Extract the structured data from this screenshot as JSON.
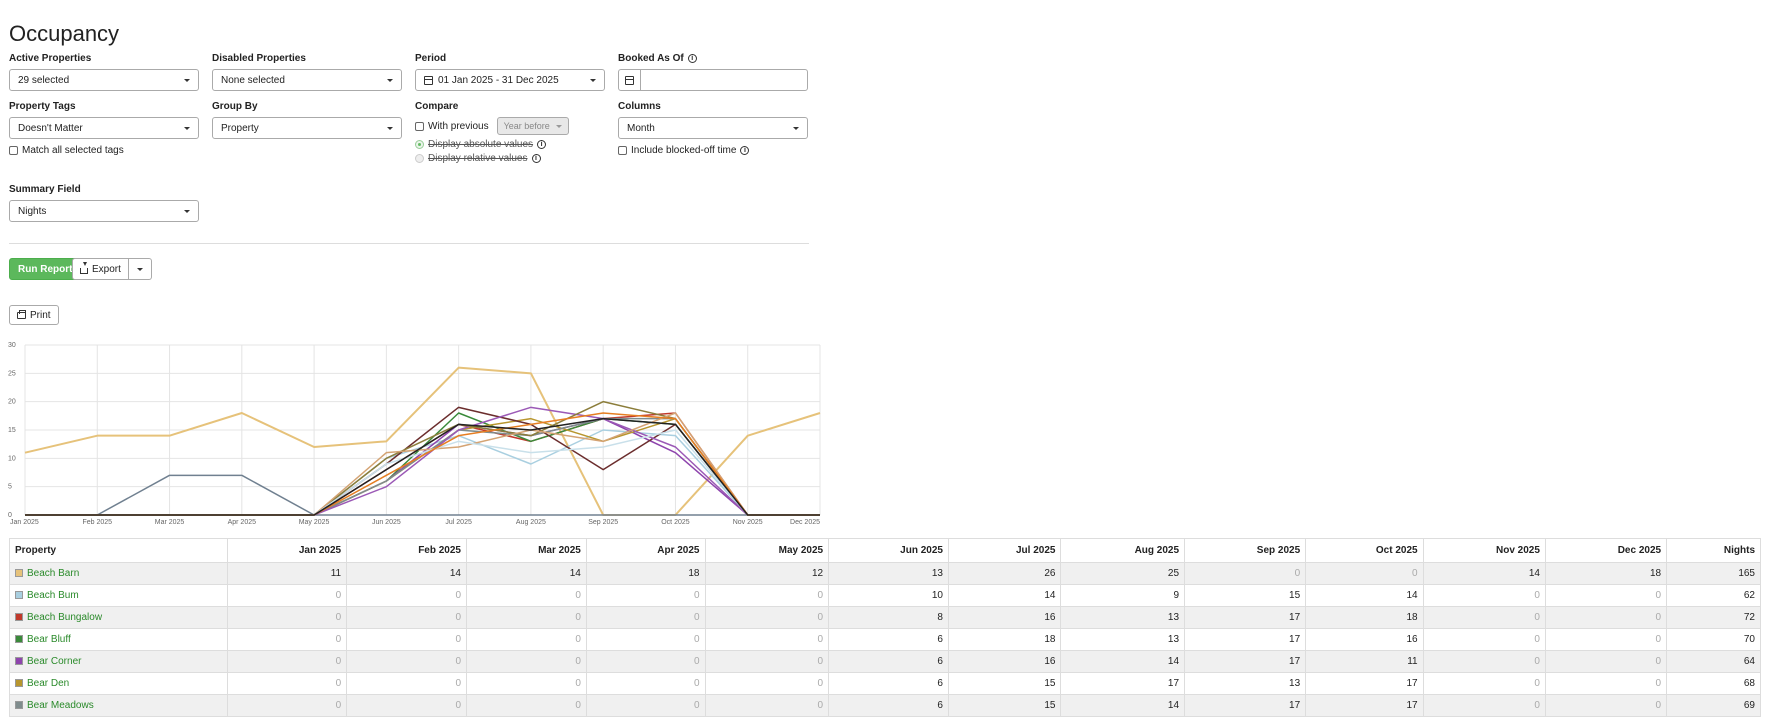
{
  "page": {
    "title": "Occupancy"
  },
  "filters": {
    "active_properties": {
      "label": "Active Properties",
      "value": "29 selected"
    },
    "disabled_properties": {
      "label": "Disabled Properties",
      "value": "None selected"
    },
    "period": {
      "label": "Period",
      "value": "01 Jan 2025 - 31 Dec 2025"
    },
    "booked_as_of": {
      "label": "Booked As Of",
      "value": ""
    },
    "property_tags": {
      "label": "Property Tags",
      "value": "Doesn't Matter",
      "match_all_label": "Match all selected tags"
    },
    "group_by": {
      "label": "Group By",
      "value": "Property"
    },
    "compare": {
      "label": "Compare",
      "with_previous_label": "With previous",
      "previous_select": "Year before",
      "absolute_label": "Display absolute values",
      "relative_label": "Display relative values"
    },
    "columns": {
      "label": "Columns",
      "value": "Month",
      "include_blocked_label": "Include blocked-off time"
    },
    "summary_field": {
      "label": "Summary Field",
      "value": "Nights"
    }
  },
  "actions": {
    "run_report": "Run Report",
    "export": "Export",
    "print": "Print"
  },
  "chart_data": {
    "type": "line",
    "categories": [
      "Jan 2025",
      "Feb 2025",
      "Mar 2025",
      "Apr 2025",
      "May 2025",
      "Jun 2025",
      "Jul 2025",
      "Aug 2025",
      "Sep 2025",
      "Oct 2025",
      "Nov 2025",
      "Dec 2025"
    ],
    "ylim": [
      0,
      30
    ],
    "yticks": [
      0,
      5,
      10,
      15,
      20,
      25,
      30
    ],
    "grid": true,
    "series": [
      {
        "color": "#e6c27a",
        "values": [
          11,
          14,
          14,
          18,
          12,
          13,
          26,
          25,
          0,
          0,
          14,
          18
        ]
      },
      {
        "color": "#a9cfe0",
        "values": [
          0,
          0,
          0,
          0,
          0,
          10,
          14,
          9,
          15,
          14,
          0,
          0
        ]
      },
      {
        "color": "#c0392b",
        "values": [
          0,
          0,
          0,
          0,
          0,
          8,
          16,
          13,
          17,
          18,
          0,
          0
        ]
      },
      {
        "color": "#3a8a3a",
        "values": [
          0,
          0,
          0,
          0,
          0,
          6,
          18,
          13,
          17,
          16,
          0,
          0
        ]
      },
      {
        "color": "#8e44ad",
        "values": [
          0,
          0,
          0,
          0,
          0,
          6,
          16,
          14,
          17,
          11,
          0,
          0
        ]
      },
      {
        "color": "#b8962e",
        "values": [
          0,
          0,
          0,
          0,
          0,
          6,
          15,
          17,
          13,
          17,
          0,
          0
        ]
      },
      {
        "color": "#7f8c8d",
        "values": [
          0,
          0,
          0,
          0,
          0,
          6,
          15,
          14,
          17,
          17,
          0,
          0
        ]
      },
      {
        "color": "#708090",
        "values": [
          0,
          0,
          7,
          7,
          0,
          0,
          0,
          0,
          0,
          0,
          0,
          0
        ]
      },
      {
        "color": "#6b2d2d",
        "values": [
          0,
          0,
          0,
          0,
          0,
          9,
          19,
          16,
          8,
          16,
          0,
          0
        ]
      },
      {
        "color": "#9b59b6",
        "values": [
          0,
          0,
          0,
          0,
          0,
          5,
          15,
          19,
          17,
          12,
          0,
          0
        ]
      },
      {
        "color": "#8b7d3a",
        "values": [
          0,
          0,
          0,
          0,
          0,
          10,
          16,
          14,
          20,
          17,
          0,
          0
        ]
      },
      {
        "color": "#d4a373",
        "values": [
          0,
          0,
          0,
          0,
          0,
          11,
          12,
          15,
          13,
          18,
          0,
          0
        ]
      },
      {
        "color": "#c9e0ea",
        "values": [
          0,
          0,
          0,
          0,
          0,
          9,
          13,
          11,
          12,
          15,
          0,
          0
        ]
      },
      {
        "color": "#e67e22",
        "values": [
          0,
          0,
          0,
          0,
          0,
          7,
          14,
          16,
          18,
          17,
          0,
          0
        ]
      },
      {
        "color": "#222222",
        "values": [
          0,
          0,
          0,
          0,
          0,
          8,
          16,
          15,
          17,
          16,
          0,
          0
        ]
      }
    ]
  },
  "table": {
    "headers": [
      "Property",
      "Jan 2025",
      "Feb 2025",
      "Mar 2025",
      "Apr 2025",
      "May 2025",
      "Jun 2025",
      "Jul 2025",
      "Aug 2025",
      "Sep 2025",
      "Oct 2025",
      "Nov 2025",
      "Dec 2025",
      "Nights"
    ],
    "rows": [
      {
        "name": "Beach Barn",
        "color": "#e6c27a",
        "values": [
          "11",
          "14",
          "14",
          "18",
          "12",
          "13",
          "26",
          "25",
          "0",
          "0",
          "14",
          "18",
          "165"
        ]
      },
      {
        "name": "Beach Bum",
        "color": "#a9cfe0",
        "values": [
          "0",
          "0",
          "0",
          "0",
          "0",
          "10",
          "14",
          "9",
          "15",
          "14",
          "0",
          "0",
          "62"
        ]
      },
      {
        "name": "Beach Bungalow",
        "color": "#c0392b",
        "values": [
          "0",
          "0",
          "0",
          "0",
          "0",
          "8",
          "16",
          "13",
          "17",
          "18",
          "0",
          "0",
          "72"
        ]
      },
      {
        "name": "Bear Bluff",
        "color": "#3a8a3a",
        "values": [
          "0",
          "0",
          "0",
          "0",
          "0",
          "6",
          "18",
          "13",
          "17",
          "16",
          "0",
          "0",
          "70"
        ]
      },
      {
        "name": "Bear Corner",
        "color": "#8e44ad",
        "values": [
          "0",
          "0",
          "0",
          "0",
          "0",
          "6",
          "16",
          "14",
          "17",
          "11",
          "0",
          "0",
          "64"
        ]
      },
      {
        "name": "Bear Den",
        "color": "#b8962e",
        "values": [
          "0",
          "0",
          "0",
          "0",
          "0",
          "6",
          "15",
          "17",
          "13",
          "17",
          "0",
          "0",
          "68"
        ]
      },
      {
        "name": "Bear Meadows",
        "color": "#7f8c8d",
        "values": [
          "0",
          "0",
          "0",
          "0",
          "0",
          "6",
          "15",
          "14",
          "17",
          "17",
          "0",
          "0",
          "69"
        ]
      }
    ]
  }
}
